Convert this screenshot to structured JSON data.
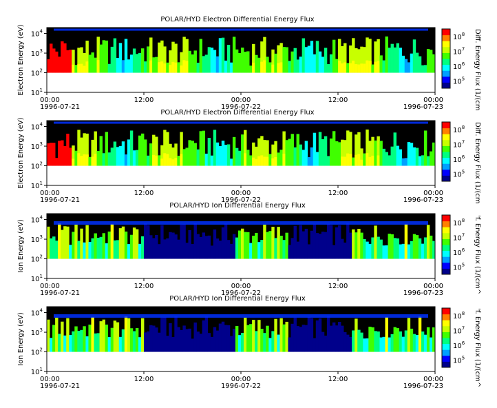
{
  "chart_data": [
    {
      "type": "heatmap",
      "title": "POLAR/HYD  Electron Differential Energy Flux",
      "ylabel": "Electron Energy (eV)",
      "colorbar_label": "Diff. Energy Flux (1/(cm",
      "y_scale": "log",
      "ylim": [
        10,
        20000
      ],
      "y_ticks": [
        {
          "base": "10",
          "exp": "1"
        },
        {
          "base": "10",
          "exp": "2"
        },
        {
          "base": "10",
          "exp": "3"
        },
        {
          "base": "10",
          "exp": "4"
        }
      ],
      "x_ticks": [
        {
          "time": "00:00",
          "date": "1996-07-21"
        },
        {
          "time": "12:00",
          "date": ""
        },
        {
          "time": "00:00",
          "date": "1996-07-22"
        },
        {
          "time": "12:00",
          "date": ""
        },
        {
          "time": "00:00",
          "date": "1996-07-23"
        }
      ],
      "colorbar_ticks": [
        {
          "base": "10",
          "exp": "5"
        },
        {
          "base": "10",
          "exp": "6"
        },
        {
          "base": "10",
          "exp": "7"
        },
        {
          "base": "10",
          "exp": "8"
        }
      ],
      "data_floor_eV": 100,
      "top_band_eV": 15000
    },
    {
      "type": "heatmap",
      "title": "POLAR/HYD  Electron Differential Energy Flux",
      "ylabel": "Electron Energy (eV)",
      "colorbar_label": "Diff. Energy Flux (1/(cm",
      "y_scale": "log",
      "ylim": [
        10,
        20000
      ],
      "y_ticks": [
        {
          "base": "10",
          "exp": "1"
        },
        {
          "base": "10",
          "exp": "2"
        },
        {
          "base": "10",
          "exp": "3"
        },
        {
          "base": "10",
          "exp": "4"
        }
      ],
      "x_ticks": [
        {
          "time": "00:00",
          "date": "1996-07-21"
        },
        {
          "time": "12:00",
          "date": ""
        },
        {
          "time": "00:00",
          "date": "1996-07-22"
        },
        {
          "time": "12:00",
          "date": ""
        },
        {
          "time": "00:00",
          "date": "1996-07-23"
        }
      ],
      "colorbar_ticks": [
        {
          "base": "10",
          "exp": "5"
        },
        {
          "base": "10",
          "exp": "6"
        },
        {
          "base": "10",
          "exp": "7"
        },
        {
          "base": "10",
          "exp": "8"
        }
      ],
      "data_floor_eV": 100,
      "top_band_eV": 15000
    },
    {
      "type": "heatmap",
      "title": "POLAR/HYD  Ion Differential Energy Flux",
      "ylabel": "Ion Energy (eV)",
      "colorbar_label": "'f. Energy Flux (1/(cm^",
      "y_scale": "log",
      "ylim": [
        10,
        20000
      ],
      "y_ticks": [
        {
          "base": "10",
          "exp": "1"
        },
        {
          "base": "10",
          "exp": "2"
        },
        {
          "base": "10",
          "exp": "3"
        },
        {
          "base": "10",
          "exp": "4"
        }
      ],
      "x_ticks": [
        {
          "time": "00:00",
          "date": "1996-07-21"
        },
        {
          "time": "12:00",
          "date": ""
        },
        {
          "time": "00:00",
          "date": "1996-07-22"
        },
        {
          "time": "12:00",
          "date": ""
        },
        {
          "time": "00:00",
          "date": "1996-07-23"
        }
      ],
      "colorbar_ticks": [
        {
          "base": "10",
          "exp": "5"
        },
        {
          "base": "10",
          "exp": "6"
        },
        {
          "base": "10",
          "exp": "7"
        },
        {
          "base": "10",
          "exp": "8"
        }
      ],
      "data_floor_eV": 100,
      "top_band_eV": 7000
    },
    {
      "type": "heatmap",
      "title": "POLAR/HYD  Ion Differential Energy Flux",
      "ylabel": "Ion Energy (eV)",
      "colorbar_label": "'f. Energy Flux (1/(cm^",
      "y_scale": "log",
      "ylim": [
        10,
        20000
      ],
      "y_ticks": [
        {
          "base": "10",
          "exp": "1"
        },
        {
          "base": "10",
          "exp": "2"
        },
        {
          "base": "10",
          "exp": "3"
        },
        {
          "base": "10",
          "exp": "4"
        }
      ],
      "x_ticks": [
        {
          "time": "00:00",
          "date": "1996-07-21"
        },
        {
          "time": "12:00",
          "date": ""
        },
        {
          "time": "00:00",
          "date": "1996-07-22"
        },
        {
          "time": "12:00",
          "date": ""
        },
        {
          "time": "00:00",
          "date": "1996-07-23"
        }
      ],
      "colorbar_ticks": [
        {
          "base": "10",
          "exp": "5"
        },
        {
          "base": "10",
          "exp": "6"
        },
        {
          "base": "10",
          "exp": "7"
        },
        {
          "base": "10",
          "exp": "8"
        }
      ],
      "data_floor_eV": 100,
      "top_band_eV": 7000
    }
  ],
  "colors": {
    "background": "#000000",
    "colormap": [
      "#00008b",
      "#0000ff",
      "#00a0ff",
      "#00ffff",
      "#00ff80",
      "#40ff00",
      "#c8ff00",
      "#ffff00",
      "#ff8000",
      "#ff0000"
    ]
  }
}
